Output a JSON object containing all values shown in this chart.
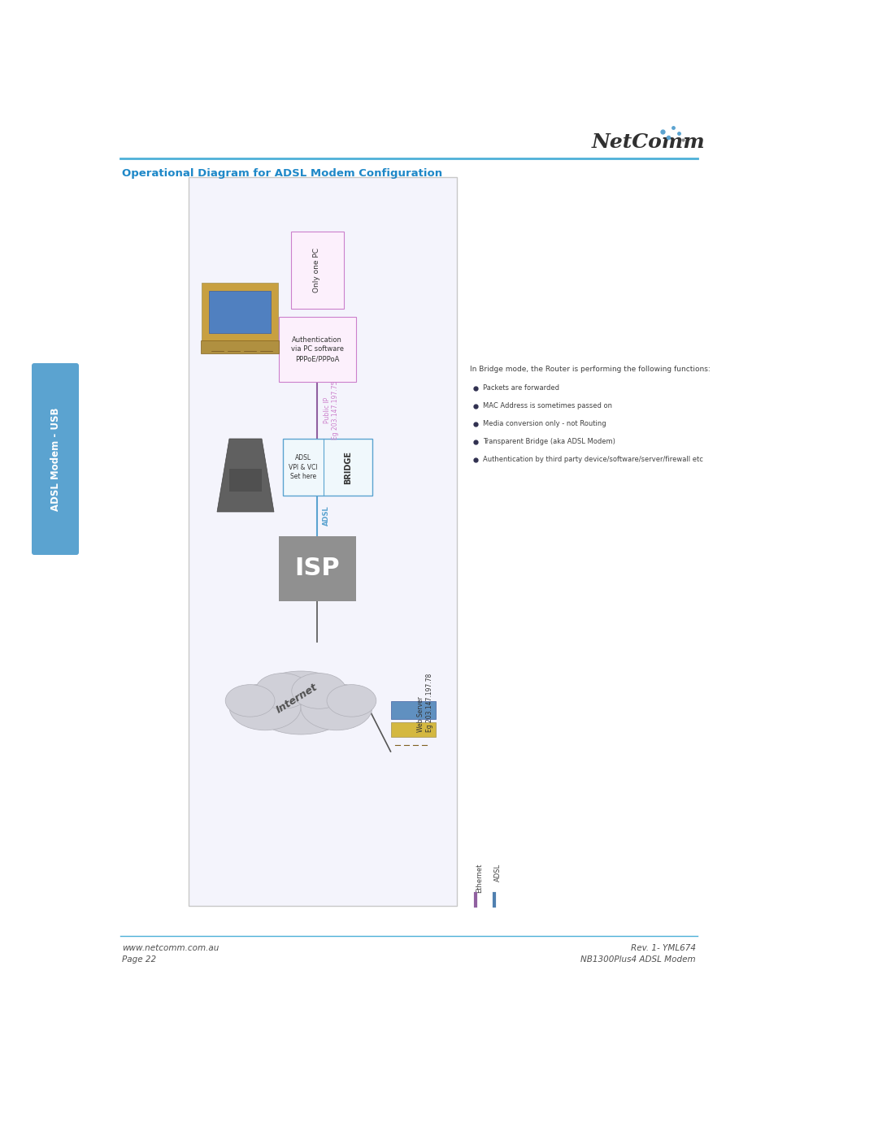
{
  "page_bg": "#ffffff",
  "title": "Operational Diagram for ADSL Modem Configuration",
  "title_color": "#1e88c8",
  "title_fontsize": 9.5,
  "header_line_color": "#4db0d8",
  "sidebar_label": "ADSL Modem - USB",
  "sidebar_bg": "#5ba3d0",
  "sidebar_text_color": "#ffffff",
  "diagram_box_border": "#c8c8c8",
  "diagram_box_bg": "#f4f4fc",
  "pc_label": "Only one PC",
  "pc_box_border": "#cc80cc",
  "auth_label": "Authentication\nvia PC software\nPPPoE/PPPoA",
  "bridge_label": "BRIDGE",
  "bridge_box_border": "#5ba3d0",
  "adsl_vpi_label": "ADSL\nVPI & VCI\nSet here",
  "adsl_vpi_border": "#5ba3d0",
  "isp_label": "ISP",
  "isp_bg": "#909090",
  "internet_label": "Internet",
  "public_ip_line1": "Public IP",
  "public_ip_line2": "Eg 203.147.197.75",
  "public_ip_color": "#cc80cc",
  "adsl_conn_label": "ADSL",
  "adsl_conn_color": "#5ba3d0",
  "web_server_label": "Web Server\nEg 203.147.197.78",
  "bridge_note": "In Bridge mode, the Router is performing the following functions:",
  "bullets": [
    "Packets are forwarded",
    "MAC Address is sometimes passed on",
    "Media conversion only - not Routing",
    "Transparent Bridge (aka ADSL Modem)",
    "Authentication by third party device/software/server/firewall etc"
  ],
  "ethernet_legend": "Ethernet",
  "adsl_legend": "ADSL",
  "ethernet_color": "#9060a0",
  "adsl_color": "#5080b0",
  "footer_left1": "www.netcomm.com.au",
  "footer_left2": "Page 22",
  "footer_right1": "Rev. 1- YML674",
  "footer_right2": "NB1300Plus4 ADSL Modem",
  "footer_color": "#505050",
  "footer_fontsize": 7.5
}
